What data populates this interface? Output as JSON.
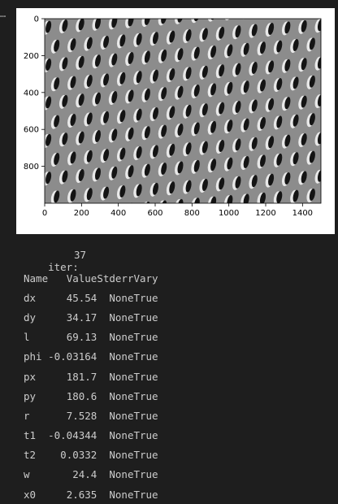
{
  "gutter": {
    "marker": "…"
  },
  "plot": {
    "y_ticks": [
      "0",
      "200",
      "400",
      "600",
      "800"
    ],
    "x_ticks": [
      "0",
      "200",
      "400",
      "600",
      "800",
      "1000",
      "1200",
      "1400"
    ],
    "image_description_icon": "grayscale-lattice-image"
  },
  "output": {
    "iter_label": "iter:",
    "iter_value": "37",
    "headers": {
      "name": "Name",
      "value": "Value",
      "stderr": "Stderr",
      "vary": "Vary"
    },
    "rows": [
      {
        "name": "dx",
        "value": "45.54",
        "stderr": "None",
        "vary": "True"
      },
      {
        "name": "dy",
        "value": "34.17",
        "stderr": "None",
        "vary": "True"
      },
      {
        "name": "l",
        "value": "69.13",
        "stderr": "None",
        "vary": "True"
      },
      {
        "name": "phi",
        "value": "-0.03164",
        "stderr": "None",
        "vary": "True"
      },
      {
        "name": "px",
        "value": "181.7",
        "stderr": "None",
        "vary": "True"
      },
      {
        "name": "py",
        "value": "180.6",
        "stderr": "None",
        "vary": "True"
      },
      {
        "name": "r",
        "value": "7.528",
        "stderr": "None",
        "vary": "True"
      },
      {
        "name": "t1",
        "value": "-0.04344",
        "stderr": "None",
        "vary": "True"
      },
      {
        "name": "t2",
        "value": "0.0332",
        "stderr": "None",
        "vary": "True"
      },
      {
        "name": "w",
        "value": "24.4",
        "stderr": "None",
        "vary": "True"
      },
      {
        "name": "x0",
        "value": "2.635",
        "stderr": "None",
        "vary": "True"
      }
    ]
  }
}
